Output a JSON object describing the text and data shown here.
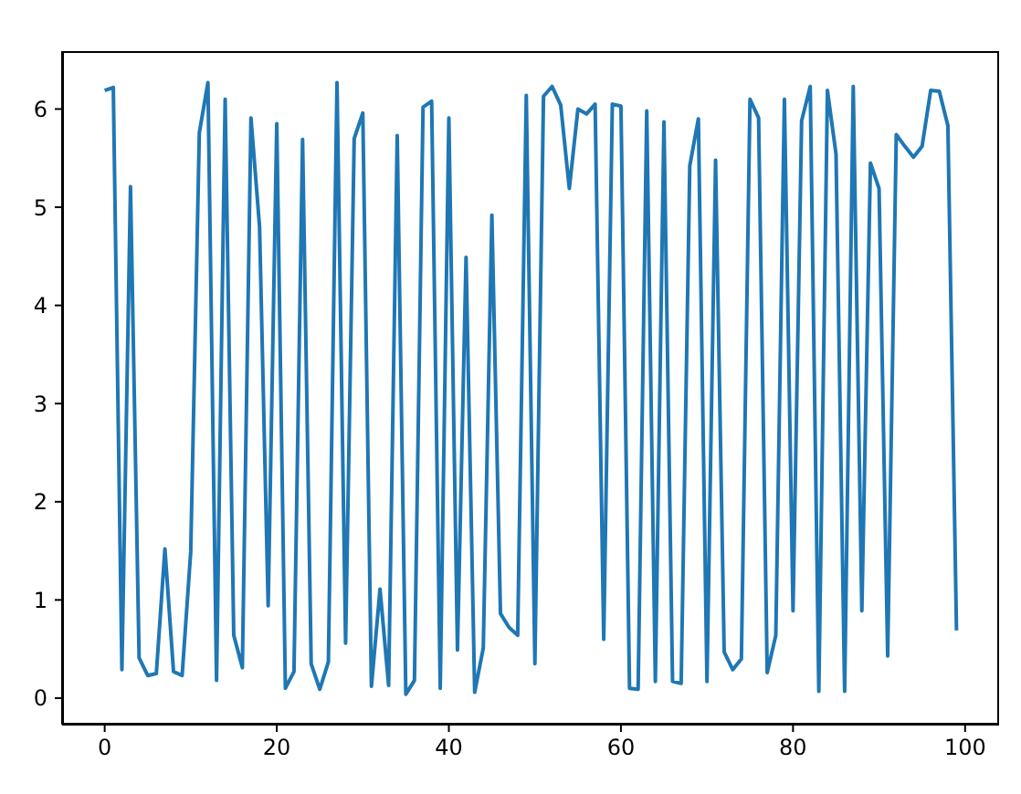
{
  "chart_data": {
    "type": "line",
    "x": [
      0,
      1,
      2,
      3,
      4,
      5,
      6,
      7,
      8,
      9,
      10,
      11,
      12,
      13,
      14,
      15,
      16,
      17,
      18,
      19,
      20,
      21,
      22,
      23,
      24,
      25,
      26,
      27,
      28,
      29,
      30,
      31,
      32,
      33,
      34,
      35,
      36,
      37,
      38,
      39,
      40,
      41,
      42,
      43,
      44,
      45,
      46,
      47,
      48,
      49,
      50,
      51,
      52,
      53,
      54,
      55,
      56,
      57,
      58,
      59,
      60,
      61,
      62,
      63,
      64,
      65,
      66,
      67,
      68,
      69,
      70,
      71,
      72,
      73,
      74,
      75,
      76,
      77,
      78,
      79,
      80,
      81,
      82,
      83,
      84,
      85,
      86,
      87,
      88,
      89,
      90,
      91,
      92,
      93,
      94,
      95,
      96,
      97,
      98,
      99
    ],
    "series": [
      {
        "color": "#1f77b4",
        "values": [
          6.19,
          6.22,
          0.29,
          5.21,
          0.41,
          0.23,
          0.25,
          1.52,
          0.27,
          0.23,
          1.49,
          5.76,
          6.27,
          0.18,
          6.1,
          0.64,
          0.31,
          5.91,
          4.8,
          0.94,
          5.85,
          0.1,
          0.27,
          5.69,
          0.35,
          0.09,
          0.37,
          6.27,
          0.56,
          5.7,
          5.96,
          0.12,
          1.11,
          0.13,
          5.73,
          0.04,
          0.18,
          6.02,
          6.08,
          0.1,
          5.91,
          0.49,
          4.49,
          0.06,
          0.51,
          4.92,
          0.86,
          0.72,
          0.64,
          6.14,
          0.35,
          6.13,
          6.23,
          6.04,
          5.19,
          6.0,
          5.95,
          6.05,
          0.6,
          6.05,
          6.03,
          0.1,
          0.09,
          5.98,
          0.17,
          5.87,
          0.17,
          0.15,
          5.42,
          5.9,
          0.17,
          5.48,
          0.47,
          0.29,
          0.4,
          6.1,
          5.91,
          0.26,
          0.64,
          6.1,
          0.89,
          5.88,
          6.23,
          0.07,
          6.19,
          5.54,
          0.07,
          6.23,
          0.89,
          5.45,
          5.19,
          0.43,
          5.74,
          5.62,
          5.51,
          5.62,
          6.19,
          6.18,
          5.83,
          0.69
        ]
      }
    ],
    "xlim": [
      -4.95,
      103.95
    ],
    "ylim": [
      -0.27,
      6.59
    ],
    "xticks": [
      0,
      20,
      40,
      60,
      80,
      100
    ],
    "yticks": [
      0,
      1,
      2,
      3,
      4,
      5,
      6
    ]
  }
}
